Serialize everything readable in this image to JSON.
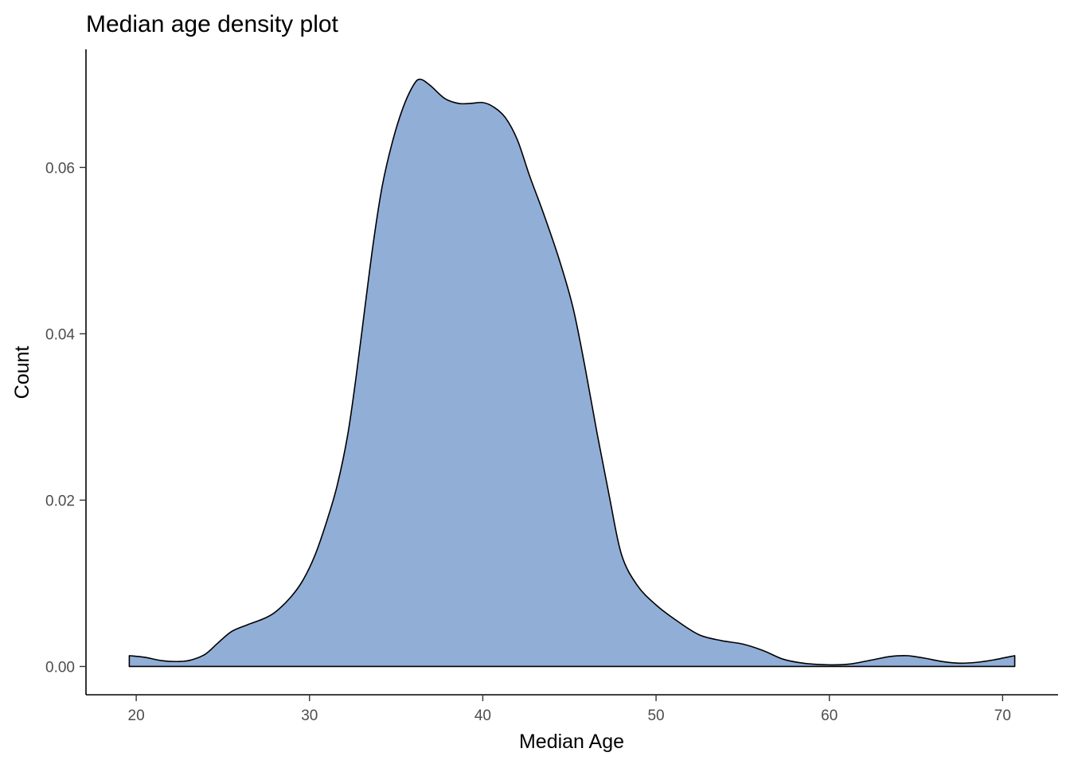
{
  "chart_data": {
    "type": "area",
    "title": "Median age density plot",
    "xlabel": "Median Age",
    "ylabel": "Count",
    "xlim": [
      17.1,
      73.2
    ],
    "ylim": [
      -0.0034,
      0.0742
    ],
    "xticks": [
      20,
      30,
      40,
      50,
      60,
      70
    ],
    "yticks": [
      0.0,
      0.02,
      0.04,
      0.06
    ],
    "ytick_labels": [
      "0.00",
      "0.02",
      "0.04",
      "0.06"
    ],
    "grid": false,
    "legend": "none",
    "fill_color": "#91AED7",
    "line_color": "#000000",
    "series": [
      {
        "x": [
          19.6,
          20.5,
          21.5,
          22.5,
          23.2,
          24.0,
          24.7,
          25.5,
          26.4,
          27.3,
          28.0,
          28.9,
          29.6,
          30.3,
          31.0,
          31.6,
          32.2,
          32.7,
          33.2,
          33.7,
          34.2,
          34.8,
          35.4,
          36.0,
          36.4,
          37.0,
          37.8,
          38.6,
          39.3,
          40.0,
          40.6,
          41.3,
          42.0,
          42.7,
          43.5,
          44.4,
          45.2,
          45.9,
          46.6,
          47.3,
          48.0,
          48.9,
          50.0,
          51.2,
          52.5,
          53.8,
          55.0,
          56.2,
          57.3,
          58.5,
          60.0,
          61.2,
          62.5,
          63.5,
          64.5,
          65.5,
          66.5,
          67.5,
          68.5,
          69.5,
          70.7
        ],
        "y": [
          0.0013,
          0.0011,
          0.0007,
          0.0006,
          0.0008,
          0.0015,
          0.0028,
          0.0042,
          0.005,
          0.0057,
          0.0065,
          0.0083,
          0.0103,
          0.0133,
          0.0175,
          0.0218,
          0.0278,
          0.035,
          0.0432,
          0.0512,
          0.0578,
          0.0632,
          0.0672,
          0.0699,
          0.0706,
          0.0698,
          0.0683,
          0.0677,
          0.0677,
          0.0678,
          0.0673,
          0.066,
          0.0633,
          0.059,
          0.0545,
          0.049,
          0.0432,
          0.036,
          0.028,
          0.0205,
          0.0135,
          0.0098,
          0.0074,
          0.0055,
          0.0038,
          0.0031,
          0.0027,
          0.0019,
          0.0009,
          0.0004,
          0.0002,
          0.0003,
          0.0008,
          0.0012,
          0.0013,
          0.001,
          0.0006,
          0.0004,
          0.0005,
          0.0008,
          0.0013
        ]
      }
    ]
  }
}
